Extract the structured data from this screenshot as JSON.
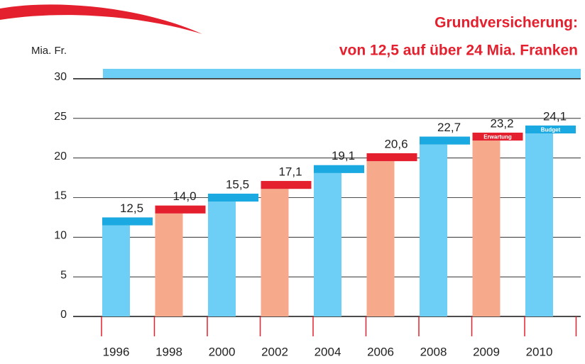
{
  "chart_data": {
    "type": "bar",
    "title": [
      "Grundversicherung:",
      "von 12,5 auf über 24 Mia. Franken"
    ],
    "y_label": "Mia. Fr.",
    "categories": [
      "1996",
      "1998",
      "2000",
      "2002",
      "2004",
      "2006",
      "2008",
      "2009",
      "2010"
    ],
    "values": [
      12.5,
      14.0,
      15.5,
      17.1,
      19.1,
      20.6,
      22.7,
      23.2,
      24.1
    ],
    "value_labels": [
      "12,5",
      "14,0",
      "15,5",
      "17,1",
      "19,1",
      "20,6",
      "22,7",
      "23,2",
      "24,1"
    ],
    "bar_notes": [
      null,
      null,
      null,
      null,
      null,
      null,
      null,
      "Erwartung",
      "Budget"
    ],
    "colors": [
      "#6dcff6",
      "#f7a98b",
      "#6dcff6",
      "#f7a98b",
      "#6dcff6",
      "#f7a98b",
      "#6dcff6",
      "#f7a98b",
      "#6dcff6"
    ],
    "cap_colors": [
      "#1ba9e1",
      "#e5202e",
      "#1ba9e1",
      "#e5202e",
      "#1ba9e1",
      "#e5202e",
      "#1ba9e1",
      "#e5202e",
      "#1ba9e1"
    ],
    "ylim": [
      0,
      30
    ],
    "yticks": [
      0,
      5,
      10,
      15,
      20,
      25,
      30
    ],
    "grid": true
  }
}
